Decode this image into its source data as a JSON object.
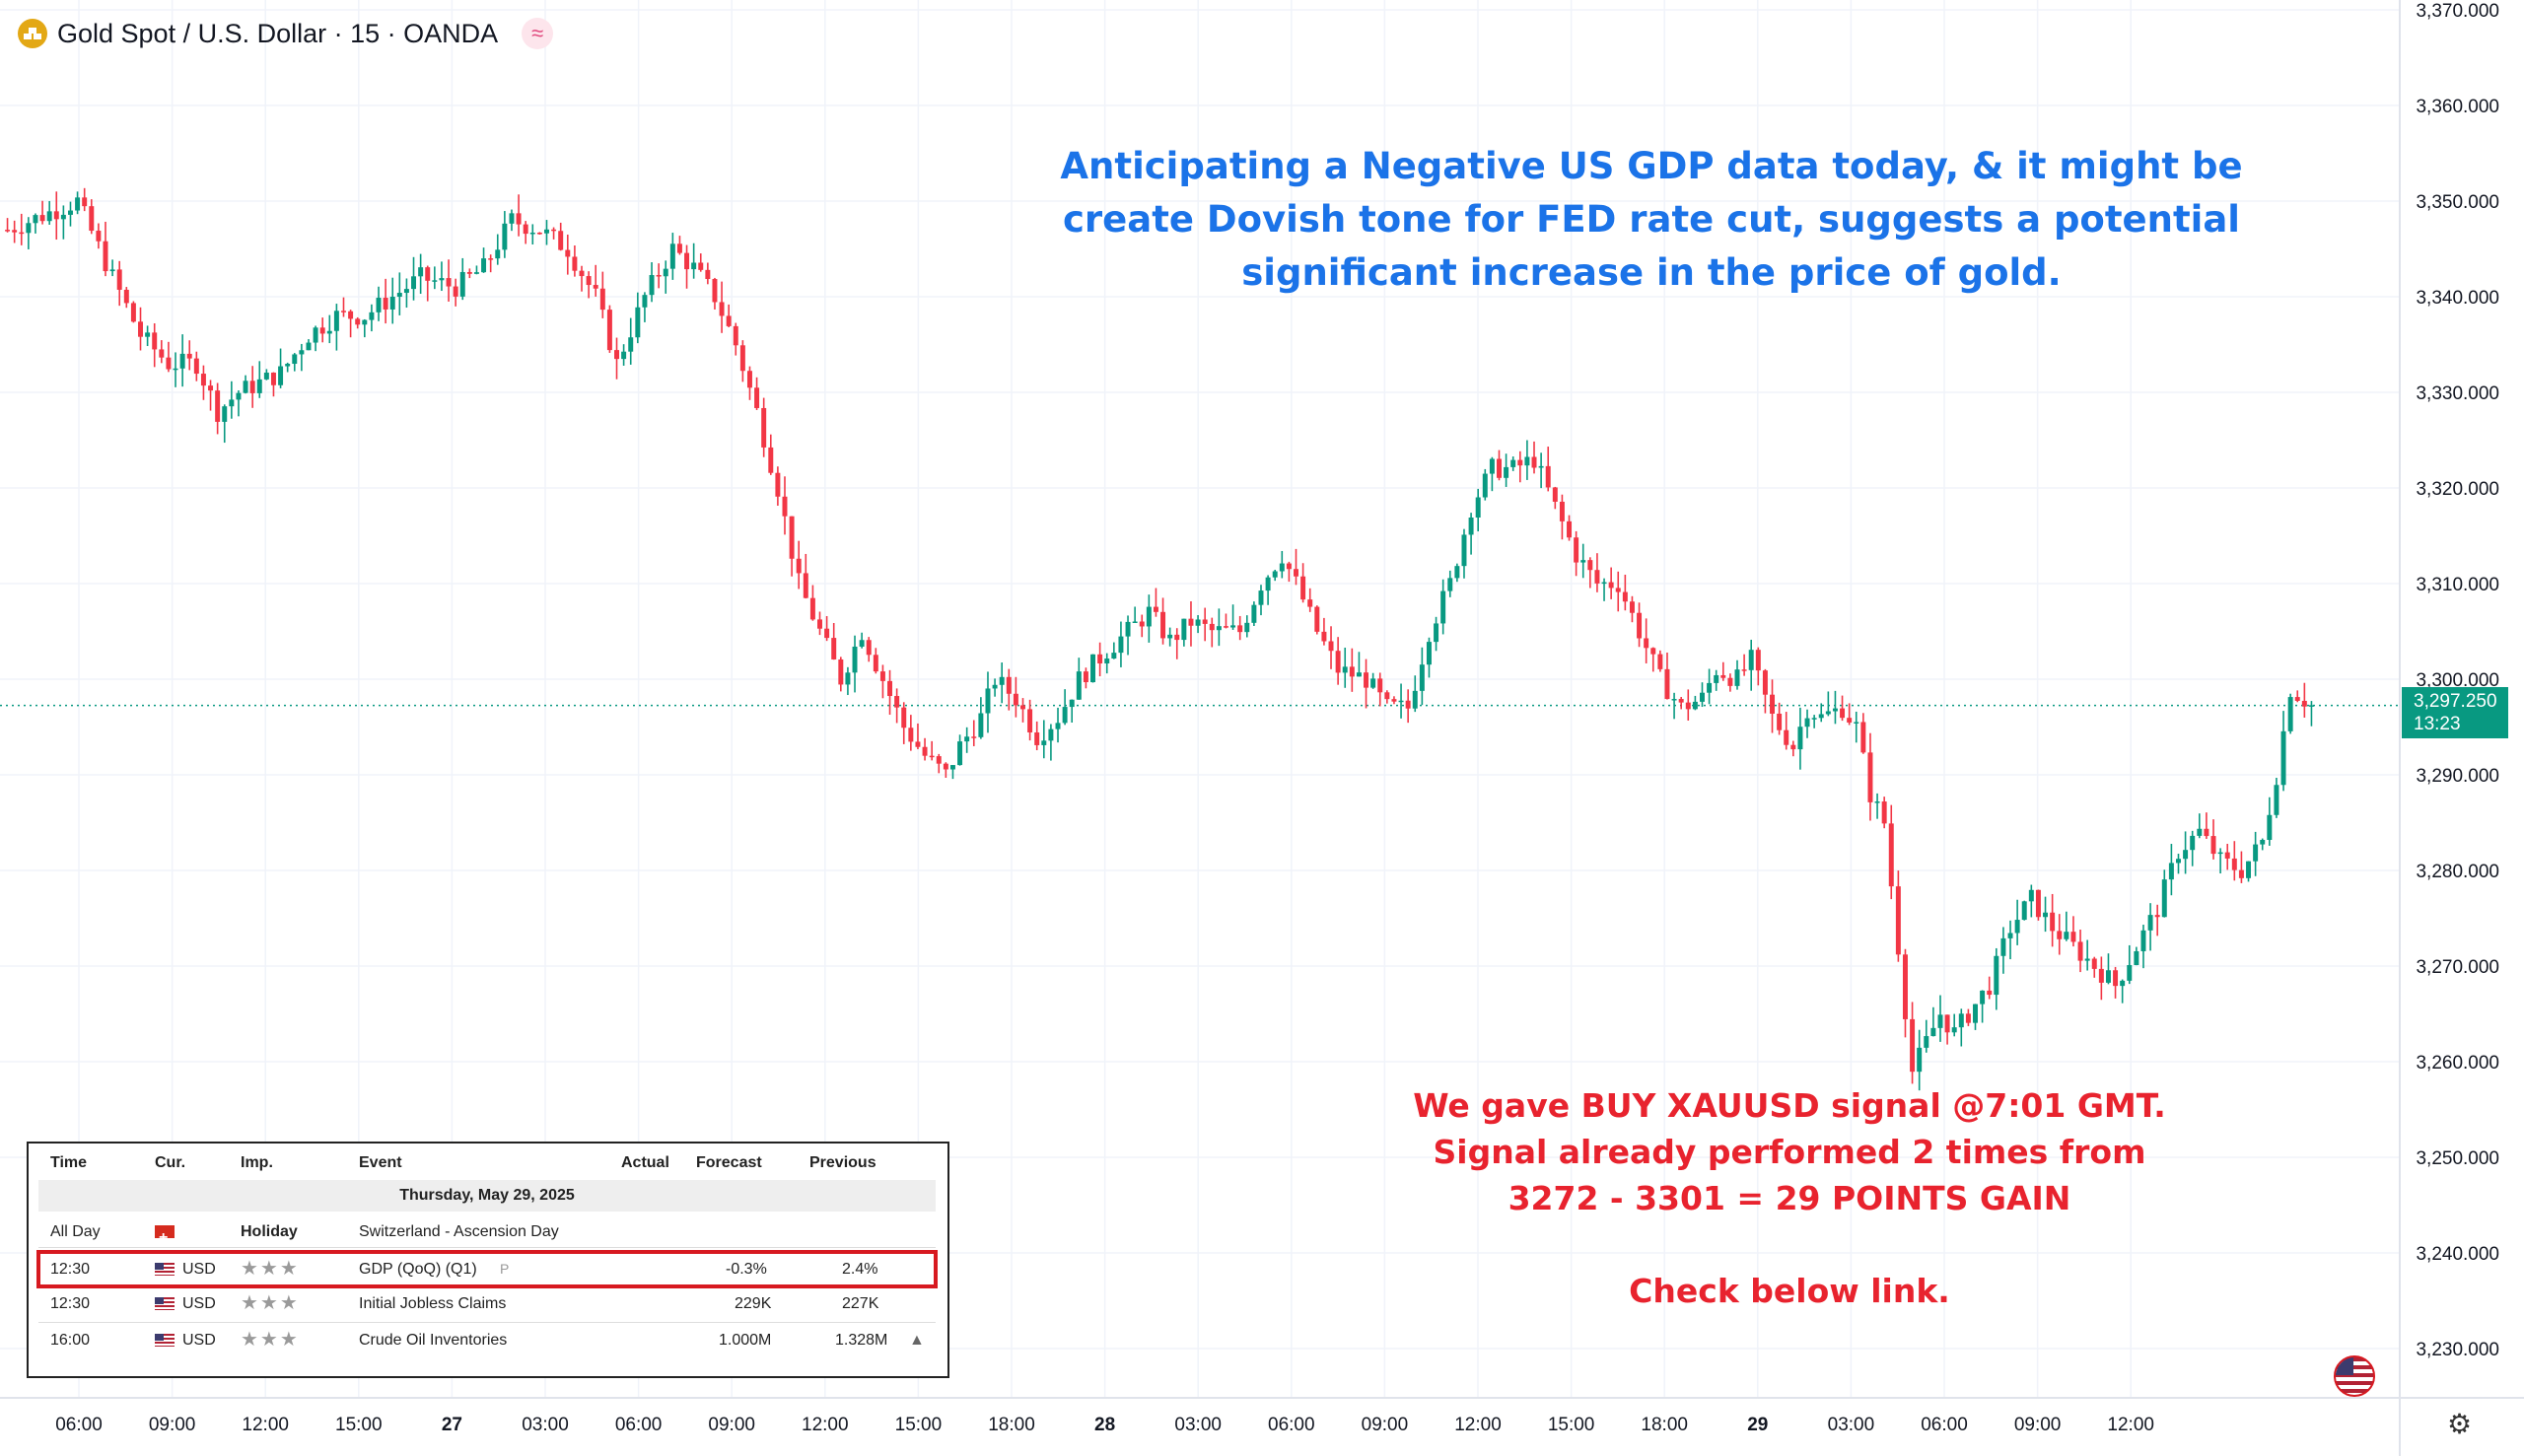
{
  "header": {
    "title": "Gold Spot / U.S. Dollar · 15 · OANDA",
    "logo_icon": "gold-coin-icon",
    "badge_icon": "wave-badge-icon",
    "badge_glyph": "≈"
  },
  "annotations": {
    "blue_text": [
      "Anticipating a Negative US GDP data today, & it might be",
      "create Dovish tone for FED rate cut, suggests a potential",
      "significant increase in the price of gold."
    ],
    "red_text": [
      "We gave BUY XAUUSD signal @7:01 GMT.",
      "Signal already performed 2 times from",
      "3272 - 3301 = 29 POINTS GAIN",
      "",
      "Check below link."
    ]
  },
  "price_badge": {
    "price": "3,297.250",
    "countdown": "13:23"
  },
  "calendar": {
    "columns": [
      "Time",
      "Cur.",
      "Imp.",
      "Event",
      "Actual",
      "Forecast",
      "Previous"
    ],
    "date": "Thursday, May 29, 2025",
    "rows": [
      {
        "time": "All Day",
        "flag": "ch",
        "cur": "",
        "imp": "Holiday",
        "event": "Switzerland - Ascension Day",
        "actual": "",
        "forecast": "",
        "previous": "",
        "highlight": false
      },
      {
        "time": "12:30",
        "flag": "us",
        "cur": "USD",
        "imp": "★★★",
        "event": "GDP (QoQ) (Q1)",
        "event_tag": "P",
        "actual": "",
        "forecast": "-0.3%",
        "previous": "2.4%",
        "highlight": true
      },
      {
        "time": "12:30",
        "flag": "us",
        "cur": "USD",
        "imp": "★★★",
        "event": "Initial Jobless Claims",
        "actual": "",
        "forecast": "229K",
        "previous": "227K",
        "highlight": false
      },
      {
        "time": "16:00",
        "flag": "us",
        "cur": "USD",
        "imp": "★★★",
        "event": "Crude Oil Inventories",
        "actual": "",
        "forecast": "1.000M",
        "previous": "1.328M",
        "event_icon": "bell-icon",
        "highlight": false
      }
    ]
  },
  "colors": {
    "up": "#089981",
    "down": "#f23645",
    "blue_note": "#1b73e8",
    "red_note": "#e8232e"
  },
  "chart_data": {
    "type": "candlestick",
    "title": "Gold Spot / U.S. Dollar · 15 · OANDA",
    "timeframe": "15",
    "y_ticks": [
      3230,
      3240,
      3250,
      3260,
      3270,
      3280,
      3290,
      3300,
      3310,
      3320,
      3330,
      3340,
      3350,
      3360,
      3370
    ],
    "y_tick_labels": [
      "3,230.000",
      "3,240.000",
      "3,250.000",
      "3,260.000",
      "3,270.000",
      "3,280.000",
      "3,290.000",
      "3,300.000",
      "3,310.000",
      "3,320.000",
      "3,330.000",
      "3,340.000",
      "3,350.000",
      "3,360.000",
      "3,370.000"
    ],
    "ylim": [
      3223,
      3370
    ],
    "x_tick_labels": [
      "06:00",
      "09:00",
      "12:00",
      "15:00",
      "27",
      "03:00",
      "06:00",
      "09:00",
      "12:00",
      "15:00",
      "18:00",
      "28",
      "03:00",
      "06:00",
      "09:00",
      "12:00",
      "15:00",
      "18:00",
      "29",
      "03:00",
      "06:00",
      "09:00",
      "12:00"
    ],
    "last_price": 3297.25,
    "path_points": [
      [
        0,
        3347
      ],
      [
        10,
        3350
      ],
      [
        15,
        3342
      ],
      [
        19,
        3336
      ],
      [
        23,
        3333
      ],
      [
        27,
        3333
      ],
      [
        30,
        3328
      ],
      [
        33,
        3330
      ],
      [
        36,
        3331
      ],
      [
        39,
        3332
      ],
      [
        43,
        3336
      ],
      [
        47,
        3338
      ],
      [
        51,
        3338
      ],
      [
        55,
        3340
      ],
      [
        59,
        3342
      ],
      [
        64,
        3341
      ],
      [
        68,
        3343
      ],
      [
        72,
        3348
      ],
      [
        76,
        3347
      ],
      [
        80,
        3345
      ],
      [
        84,
        3340
      ],
      [
        87,
        3333
      ],
      [
        91,
        3340
      ],
      [
        95,
        3345
      ],
      [
        98,
        3343
      ],
      [
        101,
        3340
      ],
      [
        104,
        3335
      ],
      [
        107,
        3328
      ],
      [
        110,
        3320
      ],
      [
        113,
        3310
      ],
      [
        116,
        3305
      ],
      [
        119,
        3300
      ],
      [
        122,
        3305
      ],
      [
        125,
        3300
      ],
      [
        128,
        3295
      ],
      [
        131,
        3292
      ],
      [
        134,
        3290
      ],
      [
        136,
        3293
      ],
      [
        139,
        3296
      ],
      [
        141,
        3300
      ],
      [
        144,
        3298
      ],
      [
        147,
        3294
      ],
      [
        150,
        3296
      ],
      [
        153,
        3300
      ],
      [
        157,
        3303
      ],
      [
        160,
        3305
      ],
      [
        163,
        3307
      ],
      [
        166,
        3304
      ],
      [
        169,
        3306
      ],
      [
        172,
        3305
      ],
      [
        176,
        3305
      ],
      [
        179,
        3310
      ],
      [
        182,
        3313
      ],
      [
        184,
        3310
      ],
      [
        187,
        3305
      ],
      [
        190,
        3301
      ],
      [
        194,
        3300
      ],
      [
        197,
        3297
      ],
      [
        200,
        3297
      ],
      [
        203,
        3305
      ],
      [
        206,
        3310
      ],
      [
        209,
        3318
      ],
      [
        212,
        3322
      ],
      [
        215,
        3322
      ],
      [
        218,
        3323
      ],
      [
        221,
        3318
      ],
      [
        224,
        3313
      ],
      [
        227,
        3310
      ],
      [
        230,
        3310
      ],
      [
        233,
        3305
      ],
      [
        236,
        3300
      ],
      [
        239,
        3297
      ],
      [
        242,
        3298
      ],
      [
        244,
        3301
      ],
      [
        247,
        3300
      ],
      [
        249,
        3302
      ],
      [
        252,
        3296
      ],
      [
        255,
        3293
      ],
      [
        257,
        3297
      ],
      [
        259,
        3296
      ],
      [
        262,
        3297
      ],
      [
        264,
        3295
      ],
      [
        266,
        3288
      ],
      [
        268,
        3285
      ],
      [
        270,
        3272
      ],
      [
        272,
        3259
      ],
      [
        274,
        3262
      ],
      [
        276,
        3265
      ],
      [
        278,
        3263
      ],
      [
        280,
        3265
      ],
      [
        283,
        3268
      ],
      [
        286,
        3274
      ],
      [
        289,
        3277
      ],
      [
        292,
        3274
      ],
      [
        295,
        3272
      ],
      [
        298,
        3270
      ],
      [
        301,
        3268
      ],
      [
        304,
        3272
      ],
      [
        307,
        3276
      ],
      [
        310,
        3282
      ],
      [
        313,
        3284
      ],
      [
        316,
        3281
      ],
      [
        319,
        3280
      ],
      [
        322,
        3283
      ],
      [
        324,
        3290
      ],
      [
        326,
        3299
      ],
      [
        329,
        3297.25
      ]
    ]
  }
}
